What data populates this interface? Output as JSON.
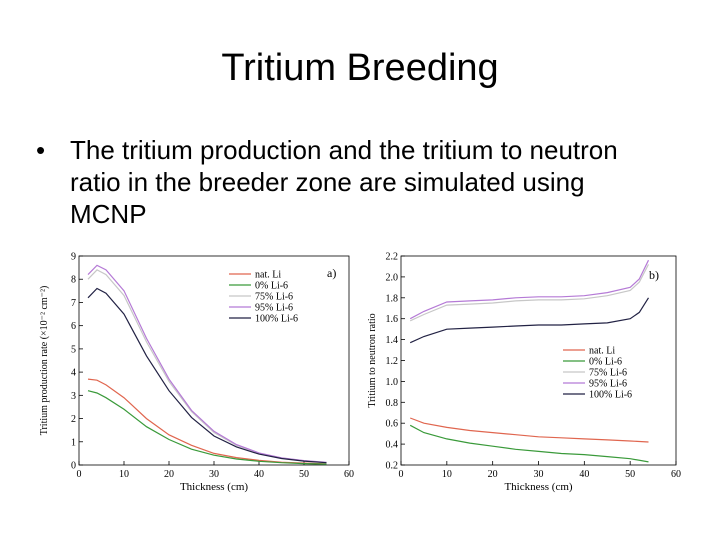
{
  "slide": {
    "title": "Tritium Breeding",
    "bullet_symbol": "•",
    "bullet_text": "The tritium production and the tritium to neutron ratio in the breeder zone are simulated using MCNP"
  },
  "colors": {
    "nat_li": "#e0664f",
    "li0": "#3a9a3a",
    "li75": "#c7c7c7",
    "li95": "#b57ad6",
    "li100": "#222244"
  },
  "chart_data": [
    {
      "type": "line",
      "panel_label": "a)",
      "xlabel": "Thickness (cm)",
      "ylabel": "Tritium production rate (×10⁻² cm⁻²)",
      "xlim": [
        0,
        60
      ],
      "ylim": [
        0,
        9
      ],
      "xticks": [
        0,
        10,
        20,
        30,
        40,
        50,
        60
      ],
      "yticks": [
        0,
        1,
        2,
        3,
        4,
        5,
        6,
        7,
        8,
        9
      ],
      "grid": false,
      "legend_position": "top-right",
      "series": [
        {
          "name": "nat. Li",
          "color_key": "nat_li",
          "x": [
            2,
            4,
            6,
            10,
            15,
            20,
            25,
            30,
            35,
            40,
            45,
            50,
            55
          ],
          "y": [
            3.7,
            3.65,
            3.45,
            2.9,
            2.0,
            1.3,
            0.85,
            0.5,
            0.32,
            0.2,
            0.12,
            0.08,
            0.05
          ]
        },
        {
          "name": "0% Li-6",
          "color_key": "li0",
          "x": [
            2,
            4,
            6,
            10,
            15,
            20,
            25,
            30,
            35,
            40,
            45,
            50,
            55
          ],
          "y": [
            3.2,
            3.1,
            2.9,
            2.4,
            1.65,
            1.1,
            0.68,
            0.42,
            0.26,
            0.16,
            0.1,
            0.06,
            0.04
          ]
        },
        {
          "name": "75% Li-6",
          "color_key": "li75",
          "x": [
            2,
            4,
            6,
            10,
            15,
            20,
            25,
            30,
            35,
            40,
            45,
            50,
            55
          ],
          "y": [
            8.0,
            8.4,
            8.2,
            7.3,
            5.3,
            3.6,
            2.3,
            1.4,
            0.85,
            0.5,
            0.3,
            0.18,
            0.1
          ]
        },
        {
          "name": "95% Li-6",
          "color_key": "li95",
          "x": [
            2,
            4,
            6,
            10,
            15,
            20,
            25,
            30,
            35,
            40,
            45,
            50,
            55
          ],
          "y": [
            8.2,
            8.6,
            8.4,
            7.5,
            5.45,
            3.7,
            2.35,
            1.45,
            0.88,
            0.52,
            0.31,
            0.19,
            0.11
          ]
        },
        {
          "name": "100% Li-6",
          "color_key": "li100",
          "x": [
            2,
            4,
            6,
            10,
            15,
            20,
            25,
            30,
            35,
            40,
            45,
            50,
            55
          ],
          "y": [
            7.2,
            7.6,
            7.4,
            6.5,
            4.7,
            3.2,
            2.05,
            1.25,
            0.78,
            0.47,
            0.28,
            0.17,
            0.1
          ]
        }
      ]
    },
    {
      "type": "line",
      "panel_label": "b)",
      "xlabel": "Thickness (cm)",
      "ylabel": "Tritium to neutron ratio",
      "xlim": [
        0,
        60
      ],
      "ylim": [
        0.2,
        2.2
      ],
      "xticks": [
        0,
        10,
        20,
        30,
        40,
        50,
        60
      ],
      "yticks": [
        0.2,
        0.4,
        0.6,
        0.8,
        1.0,
        1.2,
        1.4,
        1.6,
        1.8,
        2.0,
        2.2
      ],
      "grid": false,
      "legend_position": "center-right",
      "series": [
        {
          "name": "nat. Li",
          "color_key": "nat_li",
          "x": [
            2,
            5,
            10,
            15,
            20,
            25,
            30,
            35,
            40,
            45,
            50,
            54
          ],
          "y": [
            0.65,
            0.6,
            0.56,
            0.53,
            0.51,
            0.49,
            0.47,
            0.46,
            0.45,
            0.44,
            0.43,
            0.42
          ]
        },
        {
          "name": "0% Li-6",
          "color_key": "li0",
          "x": [
            2,
            5,
            10,
            15,
            20,
            25,
            30,
            35,
            40,
            45,
            50,
            54
          ],
          "y": [
            0.58,
            0.51,
            0.45,
            0.41,
            0.38,
            0.35,
            0.33,
            0.31,
            0.3,
            0.28,
            0.26,
            0.23
          ]
        },
        {
          "name": "75% Li-6",
          "color_key": "li75",
          "x": [
            2,
            5,
            10,
            15,
            20,
            25,
            30,
            35,
            40,
            45,
            50,
            52,
            54
          ],
          "y": [
            1.58,
            1.64,
            1.73,
            1.74,
            1.75,
            1.77,
            1.78,
            1.78,
            1.79,
            1.82,
            1.87,
            1.95,
            2.12
          ]
        },
        {
          "name": "95% Li-6",
          "color_key": "li95",
          "x": [
            2,
            5,
            10,
            15,
            20,
            25,
            30,
            35,
            40,
            45,
            50,
            52,
            54
          ],
          "y": [
            1.6,
            1.67,
            1.76,
            1.77,
            1.78,
            1.8,
            1.81,
            1.81,
            1.82,
            1.85,
            1.9,
            1.98,
            2.16
          ]
        },
        {
          "name": "100% Li-6",
          "color_key": "li100",
          "x": [
            2,
            5,
            10,
            15,
            20,
            25,
            30,
            35,
            40,
            45,
            50,
            52,
            54
          ],
          "y": [
            1.37,
            1.43,
            1.5,
            1.51,
            1.52,
            1.53,
            1.54,
            1.54,
            1.55,
            1.56,
            1.6,
            1.66,
            1.8
          ]
        }
      ]
    }
  ]
}
